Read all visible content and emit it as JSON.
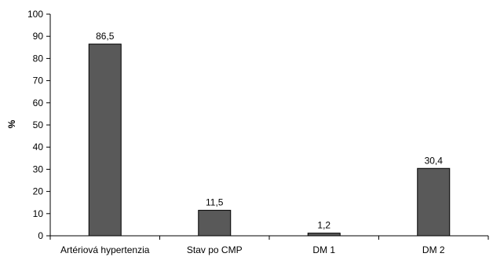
{
  "chart_data": {
    "type": "bar",
    "categories": [
      "Artériová hypertenzia",
      "Stav po CMP",
      "DM 1",
      "DM 2"
    ],
    "values": [
      86.5,
      11.5,
      1.2,
      30.4
    ],
    "data_labels": [
      "86,5",
      "11,5",
      "1,2",
      "30,4"
    ],
    "title": "",
    "xlabel": "",
    "ylabel": "%",
    "ylim": [
      0,
      100
    ],
    "yticks": [
      0,
      10,
      20,
      30,
      40,
      50,
      60,
      70,
      80,
      90,
      100
    ],
    "grid": false,
    "legend": "none",
    "colors": {
      "bar": "#595959",
      "bar_edge": "#000000",
      "axis": "#000000"
    }
  }
}
